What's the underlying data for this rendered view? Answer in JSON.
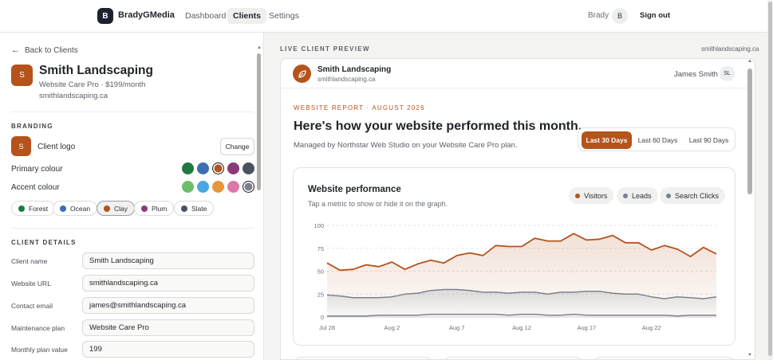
{
  "nav": {
    "brand_initial": "B",
    "brand_name": "BradyGMedia",
    "links": [
      "Dashboard",
      "Clients",
      "Settings"
    ],
    "user_name": "Brady",
    "user_initial": "B",
    "sign_out": "Sign out"
  },
  "left": {
    "back_label": "Back to Clients",
    "client_initial": "S",
    "client_name": "Smith Landscaping",
    "plan_line": "Website Care Pro · $199/month",
    "domain": "smithlandscaping.ca",
    "branding_heading": "BRANDING",
    "logo_initial": "S",
    "client_logo_label": "Client logo",
    "change_label": "Change",
    "primary_label": "Primary colour",
    "accent_label": "Accent colour",
    "primary_swatches": [
      "#1f7a3e",
      "#3b6fb5",
      "#b5531c",
      "#8a3a78",
      "#4a5260"
    ],
    "accent_swatches": [
      "#6cbf6a",
      "#4aa7e0",
      "#e8963a",
      "#d97aa8",
      "#7a8290"
    ],
    "presets": [
      {
        "name": "Forest",
        "color": "#1f7a3e"
      },
      {
        "name": "Ocean",
        "color": "#3b6fb5"
      },
      {
        "name": "Clay",
        "color": "#b5531c"
      },
      {
        "name": "Plum",
        "color": "#8a3a78"
      },
      {
        "name": "Slate",
        "color": "#4a5260"
      }
    ],
    "details_heading": "CLIENT DETAILS",
    "fields": [
      {
        "label": "Client name",
        "value": "Smith Landscaping"
      },
      {
        "label": "Website URL",
        "value": "smithlandscaping.ca"
      },
      {
        "label": "Contact email",
        "value": "james@smithlandscaping.ca"
      },
      {
        "label": "Maintenance plan",
        "value": "Website Care Pro"
      },
      {
        "label": "Monthly plan value",
        "value": "199"
      }
    ]
  },
  "preview": {
    "label": "LIVE CLIENT PREVIEW",
    "domain": "smithlandscaping.ca",
    "site_name": "Smith Landscaping",
    "site_url": "smithlandscaping.ca",
    "contact_name": "James Smith",
    "contact_initials": "SL",
    "eyebrow": "WEBSITE REPORT · AUGUST 2026",
    "title": "Here's how your website performed this month.",
    "subtitle": "Managed by Northstar Web Studio on your Website Care Pro plan.",
    "ranges": [
      "Last 30 Days",
      "Last 60 Days",
      "Last 90 Days"
    ],
    "accent_color": "#b5531c",
    "card_title": "Website performance",
    "card_subtitle": "Tap a metric to show or hide it on the graph.",
    "legend": [
      {
        "name": "Visitors",
        "color": "#b5531c"
      },
      {
        "name": "Leads",
        "color": "#7a8290"
      },
      {
        "name": "Search Clicks",
        "color": "#7a8290"
      }
    ]
  },
  "chart_data": {
    "type": "area",
    "title": "Website performance",
    "x_tick_labels": [
      "Jul 28",
      "Aug 2",
      "Aug 7",
      "Aug 12",
      "Aug 17",
      "Aug 22"
    ],
    "y_ticks": [
      0,
      25,
      50,
      75,
      100
    ],
    "ylim": [
      0,
      100
    ],
    "grid": true,
    "series": [
      {
        "name": "Visitors",
        "color": "#b5531c",
        "values": [
          59,
          51,
          52,
          57,
          55,
          60,
          52,
          58,
          62,
          59,
          67,
          70,
          67,
          78,
          77,
          77,
          86,
          83,
          83,
          91,
          84,
          85,
          89,
          81,
          81,
          73,
          78,
          74,
          66,
          76,
          69
        ]
      },
      {
        "name": "Leads",
        "color": "#7a8290",
        "values": [
          24,
          23,
          21,
          21,
          21,
          22,
          25,
          26,
          29,
          30,
          30,
          29,
          27,
          27,
          26,
          27,
          27,
          25,
          27,
          27,
          28,
          28,
          26,
          25,
          25,
          22,
          20,
          22,
          21,
          20,
          22
        ]
      },
      {
        "name": "Search Clicks",
        "color": "#7a8290",
        "values": [
          1,
          1,
          1,
          1,
          2,
          2,
          2,
          2,
          3,
          3,
          3,
          3,
          3,
          3,
          2,
          3,
          3,
          2,
          2,
          3,
          2,
          2,
          2,
          2,
          2,
          2,
          2,
          1,
          2,
          2,
          2
        ]
      }
    ]
  }
}
